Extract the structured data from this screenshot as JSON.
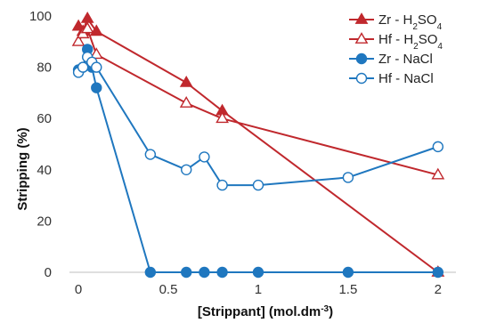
{
  "chart_data": {
    "type": "line",
    "title": "",
    "xlabel": "[Strippant] (mol.dm",
    "xlabel_sup": "-3",
    "xlabel_tail": ")",
    "ylabel": "Stripping (%)",
    "xlim": [
      -0.05,
      2.1
    ],
    "ylim": [
      0,
      100
    ],
    "xticks": [
      0,
      0.5,
      1,
      1.5,
      2
    ],
    "xtick_labels": [
      "0",
      "0.5",
      "1",
      "1.5",
      "2"
    ],
    "yticks": [
      0,
      20,
      40,
      60,
      80,
      100
    ],
    "ytick_labels": [
      "0",
      "20",
      "40",
      "60",
      "80",
      "100"
    ],
    "grid": false,
    "legend_position": "top-right",
    "series": [
      {
        "name": "Zr - H2SO4",
        "legend_parts": [
          "Zr - H",
          "2",
          "SO",
          "4"
        ],
        "color": "#c0282d",
        "marker": "triangle",
        "filled": true,
        "x": [
          0,
          0.025,
          0.05,
          0.1,
          0.6,
          0.8,
          2
        ],
        "y": [
          96,
          94,
          99,
          94,
          74,
          63,
          0
        ]
      },
      {
        "name": "Hf - H2SO4",
        "legend_parts": [
          "Hf - H",
          "2",
          "SO",
          "4"
        ],
        "color": "#c0282d",
        "marker": "triangle",
        "filled": false,
        "x": [
          0,
          0.025,
          0.05,
          0.1,
          0.6,
          0.8,
          2
        ],
        "y": [
          90,
          93,
          95,
          85,
          66,
          60,
          38
        ]
      },
      {
        "name": "Zr - NaCl",
        "legend_parts": [
          "Zr - NaCl"
        ],
        "color": "#1f77bf",
        "marker": "circle",
        "filled": true,
        "x": [
          0,
          0.025,
          0.05,
          0.075,
          0.1,
          0.4,
          0.6,
          0.7,
          0.8,
          1,
          1.5,
          2
        ],
        "y": [
          79,
          80,
          87,
          80,
          72,
          0,
          0,
          0,
          0,
          0,
          0,
          0
        ]
      },
      {
        "name": "Hf - NaCl",
        "legend_parts": [
          "Hf - NaCl"
        ],
        "color": "#1f77bf",
        "marker": "circle",
        "filled": false,
        "x": [
          0,
          0.025,
          0.05,
          0.075,
          0.1,
          0.4,
          0.6,
          0.7,
          0.8,
          1,
          1.5,
          2
        ],
        "y": [
          78,
          80,
          84,
          82,
          80,
          46,
          40,
          45,
          34,
          34,
          37,
          49
        ]
      }
    ]
  }
}
